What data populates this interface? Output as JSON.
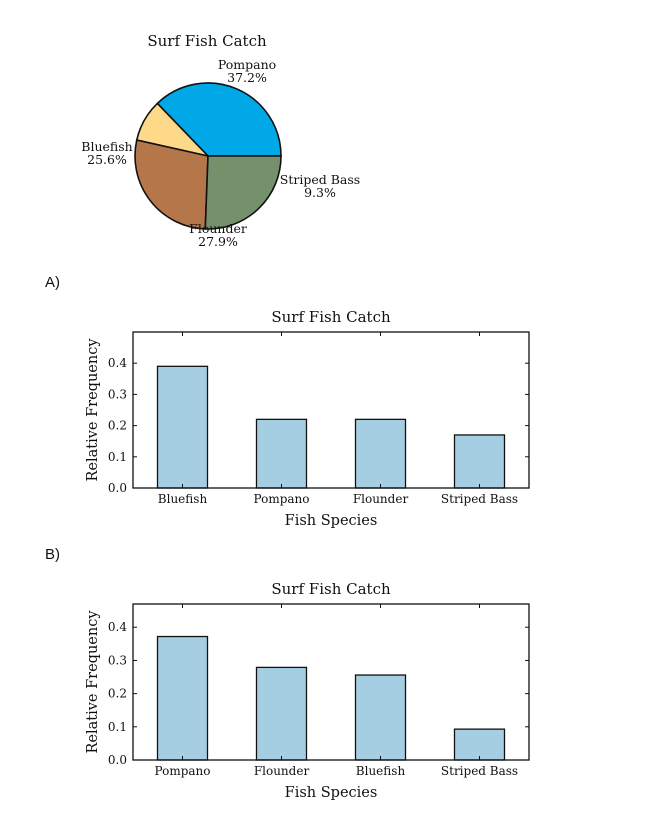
{
  "chart_data": [
    {
      "type": "pie",
      "title": "Surf Fish Catch",
      "slices": [
        {
          "label": "Pompano",
          "value": 37.2,
          "pct_label": "37.2%",
          "color": "#00a8e8"
        },
        {
          "label": "Striped Bass",
          "value": 9.3,
          "pct_label": "9.3%",
          "color": "#ffd98a"
        },
        {
          "label": "Flounder",
          "value": 27.9,
          "pct_label": "27.9%",
          "color": "#b5764a"
        },
        {
          "label": "Bluefish",
          "value": 25.6,
          "pct_label": "25.6%",
          "color": "#74916b"
        }
      ]
    },
    {
      "type": "bar",
      "option": "A)",
      "title": "Surf Fish Catch",
      "categories": [
        "Bluefish",
        "Pompano",
        "Flounder",
        "Striped Bass"
      ],
      "values": [
        0.39,
        0.22,
        0.22,
        0.17
      ],
      "xlabel": "Fish Species",
      "ylabel": "Relative Frequency",
      "ylim": [
        0,
        0.5
      ],
      "yticks": [
        "0.0",
        "0.1",
        "0.2",
        "0.3",
        "0.4"
      ],
      "bar_color": "#a6cee3",
      "grid": false
    },
    {
      "type": "bar",
      "option": "B)",
      "title": "Surf Fish Catch",
      "categories": [
        "Pompano",
        "Flounder",
        "Bluefish",
        "Striped Bass"
      ],
      "values": [
        0.372,
        0.279,
        0.256,
        0.093
      ],
      "xlabel": "Fish Species",
      "ylabel": "Relative Frequency",
      "ylim": [
        0,
        0.47
      ],
      "yticks": [
        "0.0",
        "0.1",
        "0.2",
        "0.3",
        "0.4"
      ],
      "bar_color": "#a6cee3",
      "grid": false
    }
  ]
}
